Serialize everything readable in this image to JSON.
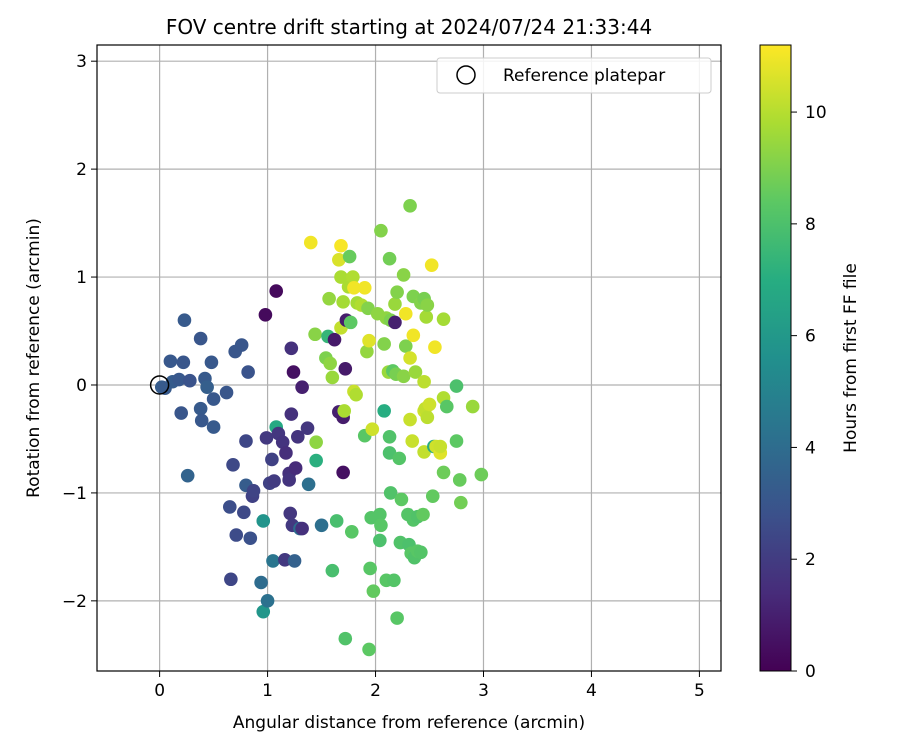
{
  "chart_data": {
    "type": "scatter",
    "title": "FOV centre drift starting at 2024/07/24 21:33:44",
    "xlabel": "Angular distance from reference (arcmin)",
    "ylabel": "Rotation from reference (arcmin)",
    "xlim": [
      -0.58,
      5.2
    ],
    "ylim": [
      -2.65,
      3.15
    ],
    "xticks": [
      0,
      1,
      2,
      3,
      4,
      5
    ],
    "yticks": [
      -2,
      -1,
      0,
      1,
      2,
      3
    ],
    "grid": true,
    "legend": {
      "placement": "top-right",
      "entries": [
        "Reference platepar"
      ]
    },
    "reference_point": {
      "x": 0,
      "y": 0
    },
    "colorbar": {
      "label": "Hours from first FF file",
      "colormap": "viridis",
      "range": [
        0,
        11.2
      ],
      "ticks": [
        0,
        2,
        4,
        6,
        8,
        10
      ]
    },
    "series": [
      {
        "points": [
          {
            "x": 0.02,
            "y": -0.02,
            "c": 3.3
          },
          {
            "x": 0.05,
            "y": -0.03,
            "c": 3.2
          },
          {
            "x": 0.1,
            "y": 0.22,
            "c": 3.1
          },
          {
            "x": 0.12,
            "y": 0.03,
            "c": 3.3
          },
          {
            "x": 0.18,
            "y": 0.05,
            "c": 3.1
          },
          {
            "x": 0.2,
            "y": -0.26,
            "c": 3.0
          },
          {
            "x": 0.22,
            "y": 0.21,
            "c": 3.0
          },
          {
            "x": 0.23,
            "y": 0.6,
            "c": 3.2
          },
          {
            "x": 0.26,
            "y": -0.84,
            "c": 3.6
          },
          {
            "x": 0.28,
            "y": 0.04,
            "c": 2.9
          },
          {
            "x": 0.38,
            "y": 0.43,
            "c": 3.0
          },
          {
            "x": 0.38,
            "y": -0.22,
            "c": 3.2
          },
          {
            "x": 0.39,
            "y": -0.33,
            "c": 3.1
          },
          {
            "x": 0.42,
            "y": 0.06,
            "c": 3.2
          },
          {
            "x": 0.44,
            "y": -0.02,
            "c": 3.4
          },
          {
            "x": 0.48,
            "y": 0.21,
            "c": 3.1
          },
          {
            "x": 0.5,
            "y": -0.13,
            "c": 3.1
          },
          {
            "x": 0.5,
            "y": -0.39,
            "c": 3.2
          },
          {
            "x": 0.62,
            "y": -0.07,
            "c": 3.0
          },
          {
            "x": 0.65,
            "y": -1.13,
            "c": 2.7
          },
          {
            "x": 0.66,
            "y": -1.8,
            "c": 2.4
          },
          {
            "x": 0.68,
            "y": -0.74,
            "c": 2.5
          },
          {
            "x": 0.7,
            "y": 0.31,
            "c": 3.0
          },
          {
            "x": 0.71,
            "y": -1.39,
            "c": 2.6
          },
          {
            "x": 0.76,
            "y": 0.37,
            "c": 3.0
          },
          {
            "x": 0.78,
            "y": -1.18,
            "c": 2.5
          },
          {
            "x": 0.8,
            "y": -0.52,
            "c": 2.4
          },
          {
            "x": 0.8,
            "y": -0.93,
            "c": 3.3
          },
          {
            "x": 0.82,
            "y": 0.12,
            "c": 2.9
          },
          {
            "x": 0.84,
            "y": -1.42,
            "c": 2.8
          },
          {
            "x": 0.86,
            "y": -1.03,
            "c": 2.2
          },
          {
            "x": 0.87,
            "y": -0.98,
            "c": 2.3
          },
          {
            "x": 0.94,
            "y": -1.83,
            "c": 4.0
          },
          {
            "x": 0.96,
            "y": -1.26,
            "c": 5.8
          },
          {
            "x": 0.96,
            "y": -2.1,
            "c": 5.9
          },
          {
            "x": 0.98,
            "y": 0.65,
            "c": 0.3
          },
          {
            "x": 0.99,
            "y": -0.49,
            "c": 1.9
          },
          {
            "x": 1.0,
            "y": -2.0,
            "c": 4.2
          },
          {
            "x": 1.02,
            "y": -0.91,
            "c": 2.2
          },
          {
            "x": 1.04,
            "y": -0.69,
            "c": 2.2
          },
          {
            "x": 1.05,
            "y": -1.63,
            "c": 4.4
          },
          {
            "x": 1.06,
            "y": -0.89,
            "c": 2.0
          },
          {
            "x": 1.08,
            "y": 0.87,
            "c": 0.3
          },
          {
            "x": 1.08,
            "y": -0.39,
            "c": 6.8
          },
          {
            "x": 1.1,
            "y": -0.45,
            "c": 1.8
          },
          {
            "x": 1.14,
            "y": -0.53,
            "c": 1.7
          },
          {
            "x": 1.16,
            "y": -1.62,
            "c": 1.9
          },
          {
            "x": 1.17,
            "y": -0.63,
            "c": 1.5
          },
          {
            "x": 1.2,
            "y": -0.82,
            "c": 1.6
          },
          {
            "x": 1.2,
            "y": -0.88,
            "c": 1.7
          },
          {
            "x": 1.21,
            "y": -1.19,
            "c": 1.8
          },
          {
            "x": 1.22,
            "y": -0.27,
            "c": 1.6
          },
          {
            "x": 1.22,
            "y": 0.34,
            "c": 1.6
          },
          {
            "x": 1.23,
            "y": -1.3,
            "c": 1.9
          },
          {
            "x": 1.24,
            "y": 0.12,
            "c": 0.5
          },
          {
            "x": 1.25,
            "y": -1.63,
            "c": 3.5
          },
          {
            "x": 1.26,
            "y": -0.77,
            "c": 1.4
          },
          {
            "x": 1.28,
            "y": -0.48,
            "c": 1.7
          },
          {
            "x": 1.3,
            "y": -1.33,
            "c": 4.0
          },
          {
            "x": 1.32,
            "y": -0.02,
            "c": 1.0
          },
          {
            "x": 1.32,
            "y": -1.33,
            "c": 1.6
          },
          {
            "x": 1.37,
            "y": -0.4,
            "c": 1.8
          },
          {
            "x": 1.38,
            "y": -0.92,
            "c": 4.1
          },
          {
            "x": 1.4,
            "y": 1.32,
            "c": 11.0
          },
          {
            "x": 1.44,
            "y": 0.47,
            "c": 9.2
          },
          {
            "x": 1.45,
            "y": -0.53,
            "c": 9.3
          },
          {
            "x": 1.45,
            "y": -0.7,
            "c": 7.1
          },
          {
            "x": 1.5,
            "y": -1.3,
            "c": 4.1
          },
          {
            "x": 1.54,
            "y": 0.25,
            "c": 9.0
          },
          {
            "x": 1.56,
            "y": 0.45,
            "c": 7.4
          },
          {
            "x": 1.57,
            "y": 0.8,
            "c": 9.4
          },
          {
            "x": 1.58,
            "y": 0.2,
            "c": 9.3
          },
          {
            "x": 1.6,
            "y": 0.07,
            "c": 9.5
          },
          {
            "x": 1.6,
            "y": -1.72,
            "c": 7.9
          },
          {
            "x": 1.62,
            "y": 0.42,
            "c": 0.8
          },
          {
            "x": 1.64,
            "y": -1.26,
            "c": 7.9
          },
          {
            "x": 1.66,
            "y": 1.16,
            "c": 10.6
          },
          {
            "x": 1.66,
            "y": -0.25,
            "c": 1.0
          },
          {
            "x": 1.68,
            "y": 1.29,
            "c": 11.1
          },
          {
            "x": 1.68,
            "y": 0.53,
            "c": 10.2
          },
          {
            "x": 1.68,
            "y": 1.0,
            "c": 9.8
          },
          {
            "x": 1.7,
            "y": 0.77,
            "c": 9.7
          },
          {
            "x": 1.7,
            "y": -0.81,
            "c": 0.5
          },
          {
            "x": 1.7,
            "y": -0.3,
            "c": 0.9
          },
          {
            "x": 1.71,
            "y": -0.24,
            "c": 9.8
          },
          {
            "x": 1.72,
            "y": 0.15,
            "c": 0.8
          },
          {
            "x": 1.72,
            "y": -2.35,
            "c": 8.1
          },
          {
            "x": 1.73,
            "y": 0.6,
            "c": 0.9
          },
          {
            "x": 1.75,
            "y": 0.91,
            "c": 9.8
          },
          {
            "x": 1.76,
            "y": 1.19,
            "c": 8.6
          },
          {
            "x": 1.77,
            "y": 0.58,
            "c": 8.4
          },
          {
            "x": 1.78,
            "y": -1.36,
            "c": 8.3
          },
          {
            "x": 1.79,
            "y": 1.0,
            "c": 9.9
          },
          {
            "x": 1.8,
            "y": 0.9,
            "c": 11.0
          },
          {
            "x": 1.8,
            "y": -0.06,
            "c": 10.3
          },
          {
            "x": 1.82,
            "y": -0.09,
            "c": 9.9
          },
          {
            "x": 1.83,
            "y": 0.76,
            "c": 9.7
          },
          {
            "x": 1.87,
            "y": 0.74,
            "c": 9.9
          },
          {
            "x": 1.9,
            "y": -0.47,
            "c": 8.3
          },
          {
            "x": 1.9,
            "y": 0.9,
            "c": 11.0
          },
          {
            "x": 1.92,
            "y": 0.31,
            "c": 9.4
          },
          {
            "x": 1.93,
            "y": 0.71,
            "c": 9.1
          },
          {
            "x": 1.94,
            "y": -2.45,
            "c": 8.4
          },
          {
            "x": 1.94,
            "y": 0.41,
            "c": 10.7
          },
          {
            "x": 1.95,
            "y": -1.7,
            "c": 8.3
          },
          {
            "x": 1.96,
            "y": -1.23,
            "c": 8.2
          },
          {
            "x": 1.97,
            "y": -0.41,
            "c": 10.4
          },
          {
            "x": 1.98,
            "y": -1.91,
            "c": 8.5
          },
          {
            "x": 2.02,
            "y": 0.66,
            "c": 9.3
          },
          {
            "x": 2.04,
            "y": -1.2,
            "c": 8.2
          },
          {
            "x": 2.04,
            "y": -1.44,
            "c": 8.0
          },
          {
            "x": 2.05,
            "y": 1.43,
            "c": 9.1
          },
          {
            "x": 2.05,
            "y": -1.3,
            "c": 8.3
          },
          {
            "x": 2.08,
            "y": 0.38,
            "c": 9.1
          },
          {
            "x": 2.08,
            "y": -0.24,
            "c": 7.0
          },
          {
            "x": 2.1,
            "y": 0.62,
            "c": 9.3
          },
          {
            "x": 2.1,
            "y": -1.81,
            "c": 8.3
          },
          {
            "x": 2.12,
            "y": 0.12,
            "c": 9.5
          },
          {
            "x": 2.13,
            "y": 1.17,
            "c": 8.8
          },
          {
            "x": 2.13,
            "y": -0.48,
            "c": 8.1
          },
          {
            "x": 2.13,
            "y": -0.63,
            "c": 8.0
          },
          {
            "x": 2.14,
            "y": 0.6,
            "c": 9.0
          },
          {
            "x": 2.14,
            "y": -1.0,
            "c": 8.1
          },
          {
            "x": 2.16,
            "y": 0.13,
            "c": 8.4
          },
          {
            "x": 2.17,
            "y": -1.81,
            "c": 8.2
          },
          {
            "x": 2.18,
            "y": 0.75,
            "c": 9.5
          },
          {
            "x": 2.18,
            "y": 0.58,
            "c": 1.0
          },
          {
            "x": 2.19,
            "y": 0.1,
            "c": 8.9
          },
          {
            "x": 2.2,
            "y": 0.86,
            "c": 9.1
          },
          {
            "x": 2.2,
            "y": -2.16,
            "c": 8.3
          },
          {
            "x": 2.22,
            "y": -0.68,
            "c": 8.2
          },
          {
            "x": 2.23,
            "y": -1.46,
            "c": 8.1
          },
          {
            "x": 2.24,
            "y": -1.06,
            "c": 8.4
          },
          {
            "x": 2.26,
            "y": 0.08,
            "c": 9.2
          },
          {
            "x": 2.26,
            "y": 1.02,
            "c": 9.2
          },
          {
            "x": 2.28,
            "y": 0.66,
            "c": 11.0
          },
          {
            "x": 2.28,
            "y": 0.36,
            "c": 9.0
          },
          {
            "x": 2.3,
            "y": -1.2,
            "c": 8.2
          },
          {
            "x": 2.31,
            "y": -1.48,
            "c": 8.0
          },
          {
            "x": 2.32,
            "y": 0.25,
            "c": 10.5
          },
          {
            "x": 2.32,
            "y": -0.32,
            "c": 10.3
          },
          {
            "x": 2.32,
            "y": 1.66,
            "c": 9.0
          },
          {
            "x": 2.33,
            "y": -1.56,
            "c": 8.3
          },
          {
            "x": 2.34,
            "y": -0.52,
            "c": 10.3
          },
          {
            "x": 2.35,
            "y": 0.46,
            "c": 11.0
          },
          {
            "x": 2.35,
            "y": -1.25,
            "c": 8.2
          },
          {
            "x": 2.35,
            "y": 0.82,
            "c": 9.0
          },
          {
            "x": 2.36,
            "y": -1.6,
            "c": 8.1
          },
          {
            "x": 2.37,
            "y": 0.12,
            "c": 9.5
          },
          {
            "x": 2.39,
            "y": -1.54,
            "c": 8.3
          },
          {
            "x": 2.39,
            "y": -1.22,
            "c": 8.1
          },
          {
            "x": 2.42,
            "y": 0.76,
            "c": 9.1
          },
          {
            "x": 2.42,
            "y": -1.55,
            "c": 8.2
          },
          {
            "x": 2.44,
            "y": -1.2,
            "c": 8.5
          },
          {
            "x": 2.45,
            "y": 0.8,
            "c": 8.9
          },
          {
            "x": 2.45,
            "y": -0.24,
            "c": 10.4
          },
          {
            "x": 2.45,
            "y": -0.62,
            "c": 10.2
          },
          {
            "x": 2.45,
            "y": 0.03,
            "c": 10.1
          },
          {
            "x": 2.46,
            "y": -0.22,
            "c": 10.2
          },
          {
            "x": 2.47,
            "y": 0.63,
            "c": 9.7
          },
          {
            "x": 2.48,
            "y": -0.3,
            "c": 10.1
          },
          {
            "x": 2.48,
            "y": 0.74,
            "c": 9.2
          },
          {
            "x": 2.5,
            "y": -0.18,
            "c": 10.4
          },
          {
            "x": 2.52,
            "y": 1.11,
            "c": 11.0
          },
          {
            "x": 2.53,
            "y": -1.03,
            "c": 8.5
          },
          {
            "x": 2.54,
            "y": -0.57,
            "c": 6.9
          },
          {
            "x": 2.55,
            "y": 0.35,
            "c": 11.0
          },
          {
            "x": 2.56,
            "y": -0.57,
            "c": 10.4
          },
          {
            "x": 2.6,
            "y": -0.63,
            "c": 10.7
          },
          {
            "x": 2.6,
            "y": -0.57,
            "c": 10.3
          },
          {
            "x": 2.63,
            "y": 0.61,
            "c": 9.7
          },
          {
            "x": 2.63,
            "y": -0.12,
            "c": 9.9
          },
          {
            "x": 2.63,
            "y": -0.81,
            "c": 8.7
          },
          {
            "x": 2.66,
            "y": -0.2,
            "c": 8.3
          },
          {
            "x": 2.75,
            "y": -0.01,
            "c": 8.0
          },
          {
            "x": 2.75,
            "y": -0.52,
            "c": 8.4
          },
          {
            "x": 2.78,
            "y": -0.88,
            "c": 8.6
          },
          {
            "x": 2.79,
            "y": -1.09,
            "c": 8.8
          },
          {
            "x": 2.9,
            "y": -0.2,
            "c": 9.5
          },
          {
            "x": 2.98,
            "y": -0.83,
            "c": 8.7
          }
        ]
      }
    ]
  }
}
